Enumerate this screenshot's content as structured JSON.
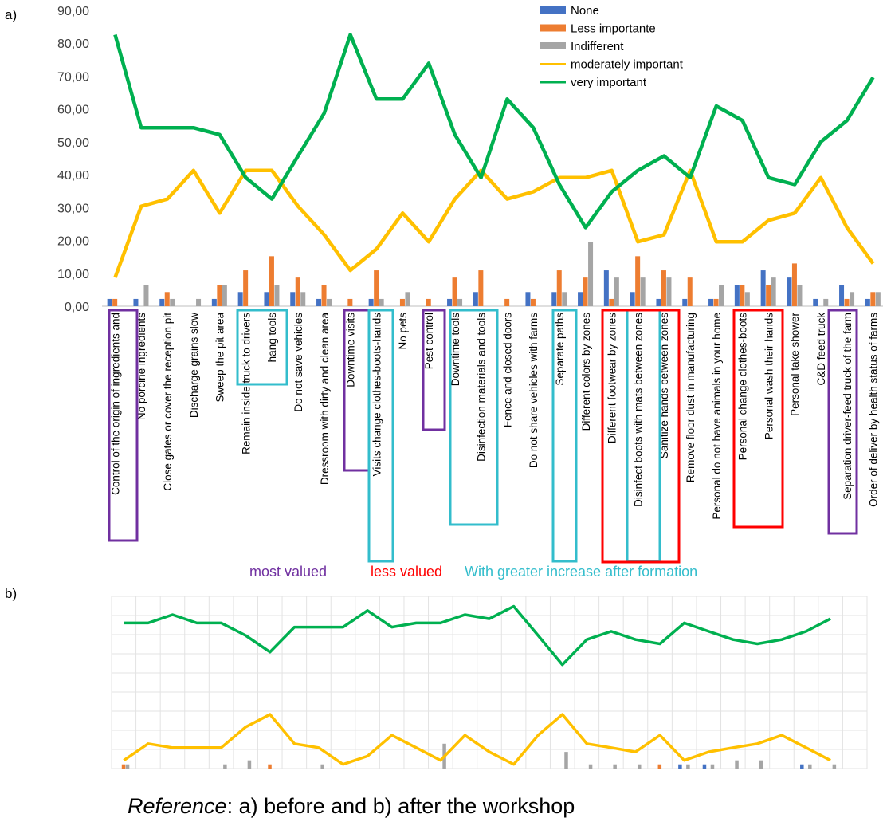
{
  "caption": {
    "italic": "Reference",
    "rest": ": a) before and b) after the workshop"
  },
  "chart_data": [
    {
      "panel": "a)",
      "type": "bar+line",
      "ylim": [
        0,
        90
      ],
      "yticks": [
        "0,00",
        "10,00",
        "20,00",
        "30,00",
        "40,00",
        "50,00",
        "60,00",
        "70,00",
        "80,00",
        "90,00"
      ],
      "grid": false,
      "legend_position": "top-right",
      "categories": [
        "Control of the origin of ingredients and",
        "No porcine ingredients",
        "Close gates or cover the reception pit",
        "Discharge grains slow",
        "Sweep the pit area",
        "Remain inside truck to drivers",
        "hang tools",
        "Do not save vehicles",
        "Dressroom with dirty and clean area",
        "Downtime visits",
        "Visits change clothes-boots-hands",
        "No pets",
        "Pest control",
        "Downtime tools",
        "Disinfection materials and tools",
        "Fence and closed doors",
        "Do not share vehicles with farms",
        "Separate paths",
        "Different colors by zones",
        "Different footwear by zones",
        "Disinfect boots with mats between zones",
        "Sanitize hands between zones",
        "Remove floor dust in manufacturing",
        "Personal do not have animals in your home",
        "Personal change clothes-boots",
        "Personal wash their hands",
        "Personal take shower",
        "C&D feed truck",
        "Separation driver-feed truck of the farm",
        "Order of deliver by health status of farms"
      ],
      "series": [
        {
          "name": "None",
          "kind": "bar",
          "color": "#4472C4",
          "values": [
            2.2,
            2.2,
            2.2,
            0,
            2.2,
            4.3,
            4.3,
            4.3,
            2.2,
            0,
            2.2,
            0,
            0,
            2.2,
            4.3,
            0,
            4.3,
            4.3,
            4.3,
            10.9,
            4.3,
            2.2,
            2.2,
            2.2,
            6.5,
            10.9,
            8.7,
            2.2,
            6.5,
            2.2
          ]
        },
        {
          "name": "Less importante",
          "kind": "bar",
          "color": "#ED7D31",
          "values": [
            2.2,
            0,
            4.3,
            0,
            6.5,
            10.9,
            15.2,
            8.7,
            6.5,
            2.2,
            10.9,
            2.2,
            2.2,
            8.7,
            10.9,
            2.2,
            2.2,
            10.9,
            8.7,
            2.2,
            15.2,
            10.9,
            8.7,
            2.2,
            6.5,
            6.5,
            13.0,
            0,
            2.2,
            4.3
          ]
        },
        {
          "name": "Indifferent",
          "kind": "bar",
          "color": "#A5A5A5",
          "values": [
            0,
            6.5,
            2.2,
            2.2,
            6.5,
            0,
            6.5,
            4.3,
            2.2,
            0,
            2.2,
            4.3,
            0,
            2.2,
            0,
            0,
            0,
            4.3,
            19.6,
            8.7,
            8.7,
            8.7,
            0,
            6.5,
            4.3,
            8.7,
            6.5,
            2.2,
            4.3,
            4.3
          ]
        },
        {
          "name": "moderately important",
          "kind": "line",
          "color": "#FFC000",
          "values": [
            8.7,
            30.4,
            32.6,
            41.3,
            28.3,
            41.3,
            41.3,
            30.4,
            21.7,
            10.9,
            17.4,
            28.3,
            19.6,
            32.6,
            41.3,
            32.6,
            34.8,
            39.1,
            39.1,
            41.3,
            19.6,
            21.7,
            41.3,
            19.6,
            19.6,
            26.1,
            28.3,
            39.1,
            23.9,
            13.0
          ]
        },
        {
          "name": "very important",
          "kind": "line",
          "color": "#00B050",
          "values": [
            82.6,
            54.3,
            54.3,
            54.3,
            52.2,
            39.1,
            32.6,
            45.7,
            58.7,
            82.6,
            63.0,
            63.0,
            73.9,
            52.2,
            39.1,
            63.0,
            54.3,
            37.0,
            23.9,
            34.8,
            41.3,
            45.7,
            39.1,
            60.9,
            56.5,
            39.1,
            37.0,
            50.0,
            56.5,
            69.6
          ]
        }
      ],
      "highlight_legend": {
        "most_valued": "most valued",
        "less_valued": "less valued",
        "greater_increase": "With greater increase after formation",
        "colors": {
          "most_valued": "#7030A0",
          "less_valued": "#FF0000",
          "greater_increase": "#33BDCC"
        }
      }
    },
    {
      "panel": "b)",
      "type": "bar+line",
      "ylim": [
        0,
        90
      ],
      "grid": true,
      "series": [
        {
          "name": "None",
          "kind": "bar",
          "color": "#4472C4",
          "values": [
            0,
            0,
            0,
            0,
            0,
            0,
            0,
            0,
            0,
            0,
            0,
            0,
            0,
            0,
            0,
            0,
            0,
            0,
            0,
            0,
            0,
            0,
            0,
            2.2,
            2.2,
            0,
            0,
            0,
            2.2,
            0
          ]
        },
        {
          "name": "Less importante",
          "kind": "bar",
          "color": "#ED7D31",
          "values": [
            2.2,
            0,
            0,
            0,
            0,
            0,
            2.2,
            0,
            0,
            0,
            0,
            0,
            0,
            0,
            0,
            0,
            0,
            0,
            0,
            0,
            0,
            0,
            2.2,
            0,
            0,
            0,
            0,
            0,
            0,
            0
          ]
        },
        {
          "name": "Indifferent",
          "kind": "bar",
          "color": "#A5A5A5",
          "values": [
            2.2,
            0,
            0,
            0,
            2.2,
            4.3,
            0,
            0,
            2.2,
            0,
            0,
            0,
            0,
            13.0,
            0,
            0,
            0,
            0,
            8.7,
            2.2,
            2.2,
            2.2,
            0,
            2.2,
            2.2,
            4.3,
            4.3,
            0,
            2.2,
            2.2
          ]
        },
        {
          "name": "moderately important",
          "kind": "line",
          "color": "#FFC000",
          "values": [
            4.3,
            13.0,
            10.9,
            10.9,
            10.9,
            21.7,
            28.3,
            13.0,
            10.9,
            2.2,
            6.5,
            17.4,
            10.9,
            4.3,
            17.4,
            8.7,
            2.2,
            17.4,
            28.3,
            13.0,
            10.9,
            8.7,
            17.4,
            4.3,
            8.7,
            10.9,
            13.0,
            17.4,
            10.9,
            4.3
          ]
        },
        {
          "name": "very important",
          "kind": "line",
          "color": "#00B050",
          "values": [
            76.1,
            76.1,
            80.4,
            76.1,
            76.1,
            69.6,
            60.9,
            73.9,
            73.9,
            73.9,
            82.6,
            73.9,
            76.1,
            76.1,
            80.4,
            78.3,
            84.8,
            69.6,
            54.3,
            67.4,
            71.7,
            67.4,
            65.2,
            76.1,
            71.7,
            67.4,
            65.2,
            67.4,
            71.7,
            78.3
          ]
        }
      ]
    }
  ]
}
